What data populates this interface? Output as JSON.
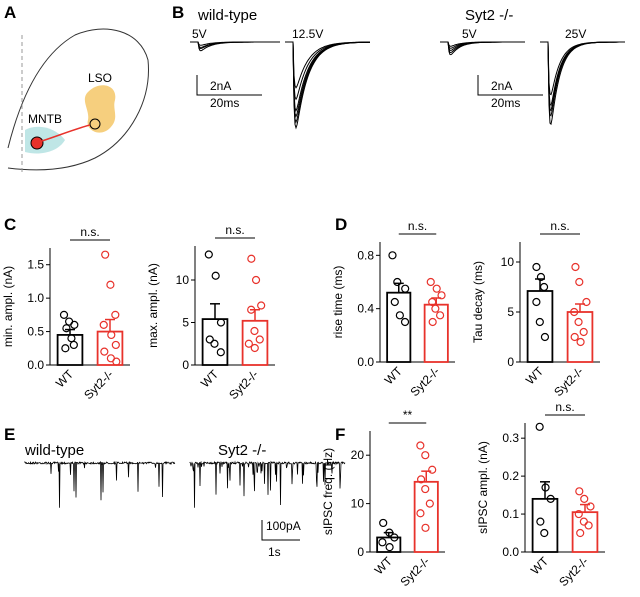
{
  "panel_labels": [
    "A",
    "B",
    "C",
    "D",
    "E",
    "F"
  ],
  "diagram": {
    "mntb": "MNTB",
    "lso": "LSO"
  },
  "traces_b": {
    "wt_label": "wild-type",
    "wt_steps": [
      "5V",
      "12.5V"
    ],
    "ko_label": "Syt2 -/-",
    "ko_steps": [
      "5V",
      "25V"
    ],
    "scale_y": "2nA",
    "scale_x": "20ms"
  },
  "traces_e": {
    "wt_label": "wild-type",
    "ko_label": "Syt2 -/-",
    "scale_y": "100pA",
    "scale_x": "1s"
  },
  "chart_data": [
    {
      "type": "bar",
      "y_label": "min. ampl. (nA)",
      "categories": [
        "WT",
        "Syt2-/-"
      ],
      "colors": [
        "#000000",
        "#e8322b"
      ],
      "values": [
        0.45,
        0.5
      ],
      "errors": [
        0.08,
        0.18
      ],
      "points": [
        [
          0.75,
          0.65,
          0.6,
          0.55,
          0.4,
          0.3,
          0.25
        ],
        [
          1.65,
          1.2,
          0.75,
          0.6,
          0.45,
          0.3,
          0.2,
          0.1,
          0.05
        ]
      ],
      "ylim": [
        0,
        1.75
      ],
      "yticks": [
        {
          "value": 0,
          "label": "0.0"
        },
        {
          "value": 0.5,
          "label": "0.5"
        },
        {
          "value": 1,
          "label": "1.0"
        },
        {
          "value": 1.5,
          "label": "1.5"
        }
      ],
      "annotation": "n.s."
    },
    {
      "type": "bar",
      "y_label": "max. ampl. (nA)",
      "categories": [
        "WT",
        "Syt2-/-"
      ],
      "colors": [
        "#000000",
        "#e8322b"
      ],
      "values": [
        5.4,
        5.2
      ],
      "errors": [
        1.8,
        1.3
      ],
      "points": [
        [
          13,
          10.5,
          5,
          3,
          2.5,
          1.5
        ],
        [
          12.5,
          10,
          7,
          6.5,
          4,
          3,
          2.5,
          2
        ]
      ],
      "ylim": [
        0,
        14
      ],
      "yticks": [
        0,
        5,
        10
      ],
      "annotation": "n.s."
    },
    {
      "type": "bar",
      "y_label": "rise time (ms)",
      "categories": [
        "WT",
        "Syt2-/-"
      ],
      "colors": [
        "#000000",
        "#e8322b"
      ],
      "values": [
        0.52,
        0.43
      ],
      "errors": [
        0.07,
        0.05
      ],
      "points": [
        [
          0.8,
          0.6,
          0.55,
          0.45,
          0.35,
          0.3
        ],
        [
          0.6,
          0.55,
          0.5,
          0.45,
          0.4,
          0.35,
          0.3
        ]
      ],
      "ylim": [
        0,
        0.9
      ],
      "yticks": [
        {
          "value": 0,
          "label": "0.0"
        },
        0.4,
        0.8
      ],
      "annotation": "n.s."
    },
    {
      "type": "bar",
      "y_label": "Tau decay (ms)",
      "categories": [
        "WT",
        "Syt2-/-"
      ],
      "colors": [
        "#000000",
        "#e8322b"
      ],
      "values": [
        7.1,
        5.0
      ],
      "errors": [
        1.2,
        0.8
      ],
      "points": [
        [
          9.5,
          8.5,
          7.5,
          6,
          4,
          2.5
        ],
        [
          9.5,
          8,
          6,
          5,
          4,
          3,
          2.5,
          2
        ]
      ],
      "ylim": [
        0,
        12
      ],
      "yticks": [
        0,
        5,
        10
      ],
      "annotation": "n.s."
    },
    {
      "type": "bar",
      "y_label": "sIPSC freq. (Hz)",
      "categories": [
        "WT",
        "Syt2-/-"
      ],
      "colors": [
        "#000000",
        "#e8322b"
      ],
      "values": [
        3,
        14.5
      ],
      "errors": [
        1,
        2.2
      ],
      "points": [
        [
          6,
          4,
          3,
          2,
          1
        ],
        [
          22,
          20,
          17,
          15,
          13,
          10,
          8,
          5
        ]
      ],
      "ylim": [
        0,
        25
      ],
      "yticks": [
        0,
        10,
        20
      ],
      "annotation": "**"
    },
    {
      "type": "bar",
      "y_label": "sIPSC ampl. (nA)",
      "categories": [
        "WT",
        "Syt2-/-"
      ],
      "colors": [
        "#000000",
        "#e8322b"
      ],
      "values": [
        0.14,
        0.105
      ],
      "errors": [
        0.045,
        0.02
      ],
      "points": [
        [
          0.33,
          0.17,
          0.14,
          0.08,
          0.05
        ],
        [
          0.16,
          0.14,
          0.12,
          0.1,
          0.08,
          0.07,
          0.05
        ]
      ],
      "ylim": [
        0,
        0.34
      ],
      "yticks": [
        {
          "value": 0,
          "label": "0.0"
        },
        0.1,
        0.2,
        0.3
      ],
      "annotation": "n.s."
    }
  ]
}
